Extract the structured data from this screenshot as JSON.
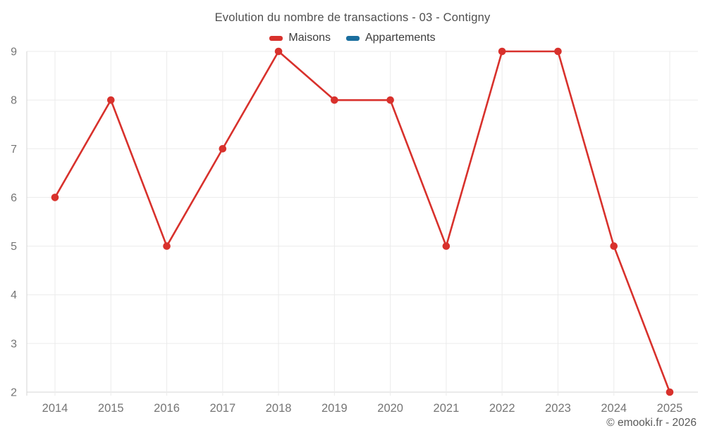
{
  "chart_data": {
    "type": "line",
    "title": "Evolution du nombre de transactions - 03 - Contigny",
    "categories": [
      "2014",
      "2015",
      "2016",
      "2017",
      "2018",
      "2019",
      "2020",
      "2021",
      "2022",
      "2023",
      "2024",
      "2025"
    ],
    "series": [
      {
        "name": "Maisons",
        "color": "#d8312c",
        "values": [
          6,
          8,
          5,
          7,
          9,
          8,
          8,
          5,
          9,
          9,
          5,
          2
        ]
      },
      {
        "name": "Appartements",
        "color": "#1a6e9e",
        "values": []
      }
    ],
    "xlabel": "",
    "ylabel": "",
    "ylim": [
      2,
      9
    ],
    "ytick_step": 1,
    "grid": true,
    "legend_position": "top",
    "colors": {
      "gridline": "#ebebeb",
      "axis_line": "#d6d6d6",
      "axis_label": "#757575",
      "title_text": "#4f4f4f",
      "legend_text": "#3c3c3c"
    }
  },
  "footer": {
    "credit": "© emooki.fr - 2026"
  }
}
